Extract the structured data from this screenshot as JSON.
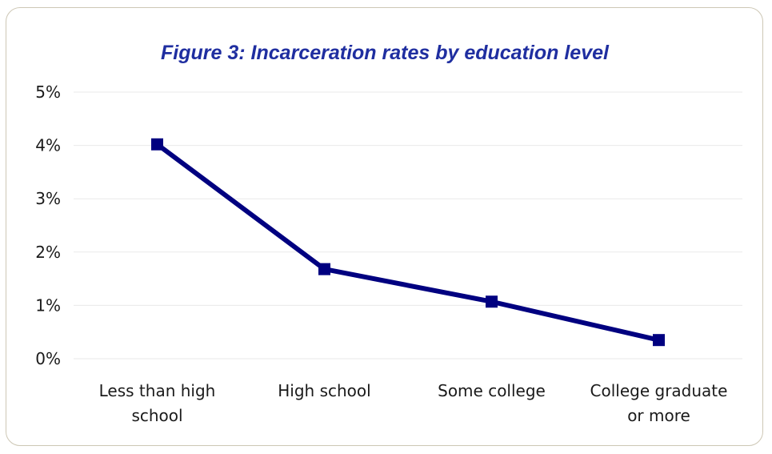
{
  "chart_data": {
    "type": "line",
    "title": "Figure 3: Incarceration rates by education level",
    "xlabel": "",
    "ylabel": "",
    "categories": [
      [
        "Less than high",
        "school"
      ],
      [
        "High school"
      ],
      [
        "Some college"
      ],
      [
        "College graduate",
        "or more"
      ]
    ],
    "values": [
      0.0402,
      0.0168,
      0.0107,
      0.0035
    ],
    "yticks": [
      "0%",
      "1%",
      "2%",
      "3%",
      "4%",
      "5%"
    ],
    "ylim": [
      0,
      0.05
    ],
    "grid": true,
    "legend": "none",
    "colors": {
      "series": "#000080",
      "title": "#1f2ea0",
      "grid": "#e9e9e9",
      "border": "#cdc7b5"
    }
  }
}
